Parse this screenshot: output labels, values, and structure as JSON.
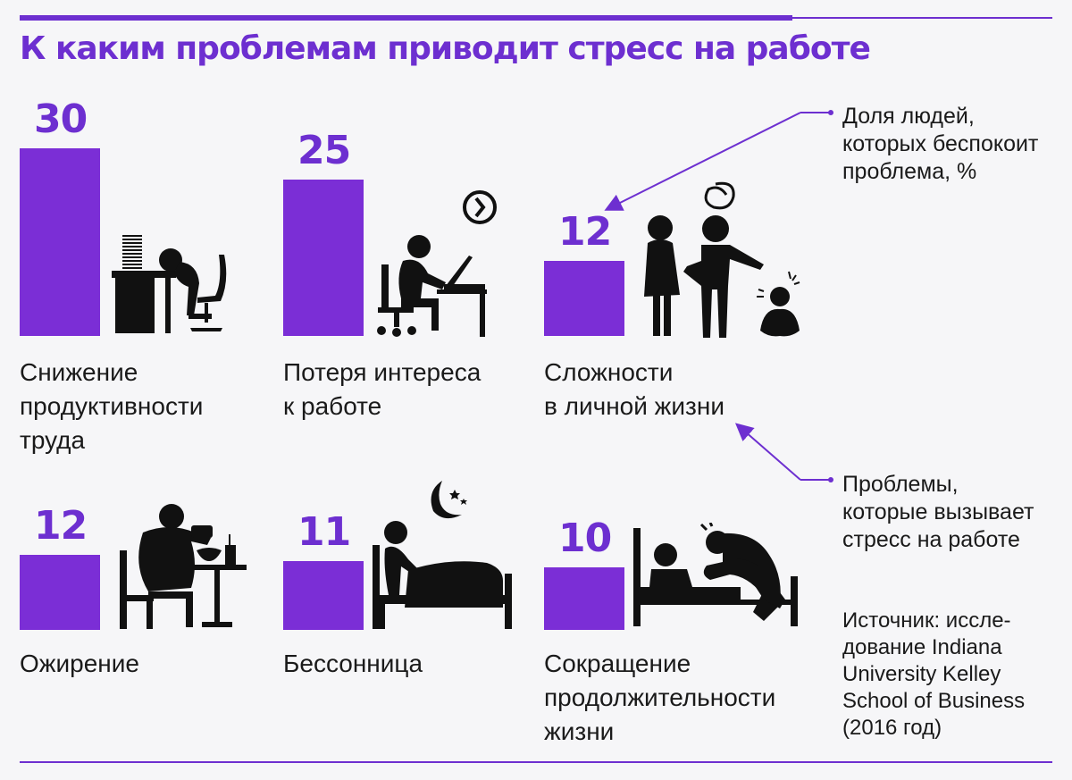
{
  "title": "К каким проблемам приводит стресс на работе",
  "legend": {
    "values_note": "Доля людей,\nкоторых беспокоит\nпроблема, %",
    "labels_note": "Проблемы,\nкоторые вызывает\nстресс на работе"
  },
  "source": "Источник: иссле-\nдование Indiana\nUniversity Kelley\nSchool of Business\n(2016 год)",
  "colors": {
    "accent": "#6d2fd0",
    "bar": "#7b2ed6",
    "text": "#1a1a1a",
    "background": "#f6f6f8"
  },
  "chart_data": {
    "type": "bar",
    "unit": "%",
    "categories": [
      "Снижение продуктивности труда",
      "Потеря интереса к работе",
      "Сложности в личной жизни",
      "Ожирение",
      "Бессонница",
      "Сокращение продолжительности жизни"
    ],
    "category_labels": [
      "Снижение\nпродуктивности\nтруда",
      "Потеря интереса\nк работе",
      "Сложности\nв личной жизни",
      "Ожирение",
      "Бессонница",
      "Сокращение\nпродолжительности\nжизни"
    ],
    "values": [
      30,
      25,
      12,
      12,
      11,
      10
    ],
    "icons": [
      "exhausted-at-desk-icon",
      "bored-at-laptop-icon",
      "family-conflict-icon",
      "overeating-icon",
      "insomnia-in-bed-icon",
      "sick-in-bed-icon"
    ]
  }
}
